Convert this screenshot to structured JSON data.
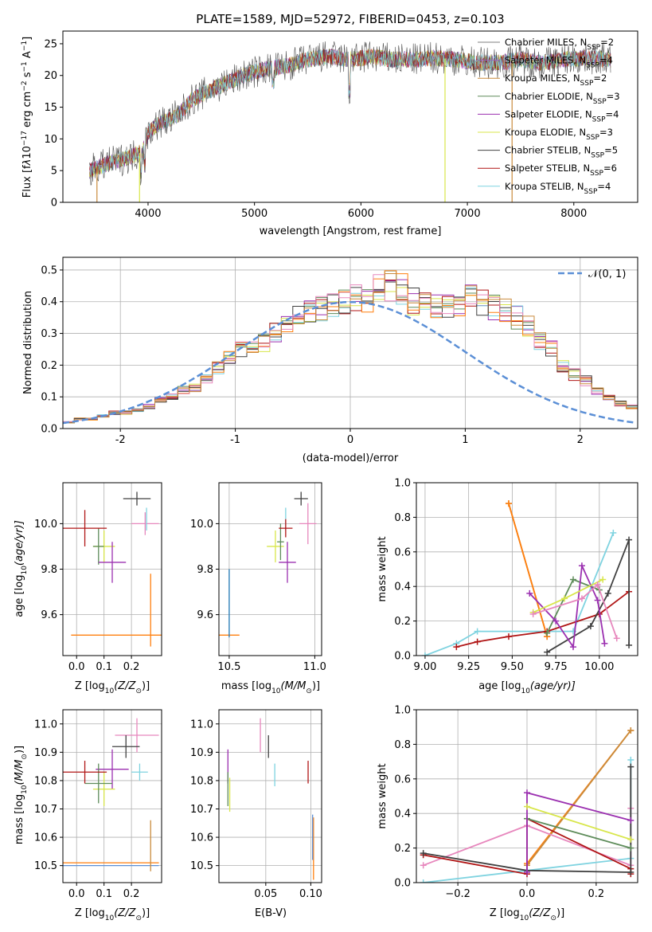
{
  "figure": {
    "title": "PLATE=1589, MJD=52972, FIBERID=0453, z=0.103"
  },
  "chart_data": [
    {
      "id": "spectrum",
      "type": "line",
      "xlabel": "wavelength [Angstrom, rest frame]",
      "ylabel": "Flux [f",
      "ylabel_parts": [
        "Flux [f",
        "λ",
        "10",
        "−17",
        " erg cm",
        "−2",
        " s",
        "−1",
        " A",
        "−1",
        "]"
      ],
      "xlim": [
        3200,
        8600
      ],
      "ylim": [
        0,
        27
      ],
      "xticks": [
        4000,
        5000,
        6000,
        7000,
        8000
      ],
      "yticks": [
        0,
        5,
        10,
        15,
        20,
        25
      ],
      "legend_position": "top-right",
      "grid": false,
      "series": [
        {
          "name": "Chabrier MILES, N",
          "sub": "SSP",
          "eq": "=2",
          "color": "#7f7f7f"
        },
        {
          "name": "Salpeter MILES, N",
          "sub": "SSP",
          "eq": "=4",
          "color": "#9467bd"
        },
        {
          "name": "Kroupa MILES, N",
          "sub": "SSP",
          "eq": "=2",
          "color": "#c98b3c"
        },
        {
          "name": "Chabrier ELODIE, N",
          "sub": "SSP",
          "eq": "=3",
          "color": "#5e8c5a"
        },
        {
          "name": "Salpeter ELODIE, N",
          "sub": "SSP",
          "eq": "=4",
          "color": "#9b30b0"
        },
        {
          "name": "Kroupa ELODIE, N",
          "sub": "SSP",
          "eq": "=3",
          "color": "#d8e64a"
        },
        {
          "name": "Chabrier STELIB, N",
          "sub": "SSP",
          "eq": "=5",
          "color": "#404040"
        },
        {
          "name": "Salpeter STELIB, N",
          "sub": "SSP",
          "eq": "=6",
          "color": "#b01515"
        },
        {
          "name": "Kroupa STELIB, N",
          "sub": "SSP",
          "eq": "=4",
          "color": "#7fd3e0"
        }
      ],
      "continuum": [
        [
          3450,
          5
        ],
        [
          3600,
          6
        ],
        [
          3800,
          7
        ],
        [
          3950,
          8
        ],
        [
          4000,
          11
        ],
        [
          4100,
          12.5
        ],
        [
          4200,
          13
        ],
        [
          4300,
          14
        ],
        [
          4400,
          16
        ],
        [
          4500,
          17
        ],
        [
          4700,
          18.5
        ],
        [
          4900,
          20
        ],
        [
          5100,
          21
        ],
        [
          5300,
          21.5
        ],
        [
          5500,
          22.5
        ],
        [
          5700,
          23
        ],
        [
          5900,
          22.5
        ],
        [
          6100,
          23
        ],
        [
          6300,
          22.5
        ],
        [
          6500,
          22.5
        ],
        [
          6700,
          22.8
        ],
        [
          6900,
          22.5
        ],
        [
          7100,
          22
        ],
        [
          7300,
          22
        ],
        [
          7500,
          22.5
        ],
        [
          7700,
          22
        ],
        [
          7900,
          22.5
        ],
        [
          8100,
          22.8
        ],
        [
          8350,
          22.5
        ]
      ],
      "spikes": [
        [
          6790,
          0,
          "#d8e64a"
        ],
        [
          7420,
          0,
          "#c98b3c"
        ],
        [
          3920,
          0,
          "#d8e64a"
        ],
        [
          3520,
          0,
          "#c98b3c"
        ]
      ]
    },
    {
      "id": "residuals",
      "type": "histogram",
      "xlabel": "(data-model)/error",
      "ylabel": "Normed distribution",
      "xlim": [
        -2.5,
        2.5
      ],
      "ylim": [
        0,
        0.54
      ],
      "xticks": [
        -2,
        -1,
        0,
        1,
        2
      ],
      "yticks": [
        0,
        0.1,
        0.2,
        0.3,
        0.4,
        0.5
      ],
      "grid": true,
      "legend_position": "top-right",
      "legend_label": "𝒩(0, 1)",
      "bin_width": 0.1,
      "bin_start": -2.5,
      "base_values": [
        0.02,
        0.03,
        0.03,
        0.04,
        0.05,
        0.05,
        0.06,
        0.07,
        0.09,
        0.1,
        0.12,
        0.13,
        0.16,
        0.19,
        0.23,
        0.25,
        0.26,
        0.27,
        0.3,
        0.33,
        0.35,
        0.37,
        0.38,
        0.39,
        0.4,
        0.41,
        0.41,
        0.44,
        0.45,
        0.44,
        0.4,
        0.39,
        0.39,
        0.38,
        0.39,
        0.41,
        0.4,
        0.38,
        0.37,
        0.35,
        0.32,
        0.28,
        0.25,
        0.2,
        0.17,
        0.15,
        0.12,
        0.1,
        0.08,
        0.07,
        0.06,
        0.05,
        0.04,
        0.04,
        0.03,
        0.03,
        0.02,
        0.02,
        0.02,
        0.02
      ]
    },
    {
      "id": "age-vs-Z",
      "type": "scatter",
      "xlabel": "Z [log",
      "xlabel_parts": [
        "Z [log",
        "10",
        "(Z/Z",
        "⊙",
        ")]"
      ],
      "ylabel_parts": [
        "age  [log",
        "10",
        "(age/yr)]"
      ],
      "xlim": [
        -0.05,
        0.31
      ],
      "ylim": [
        9.42,
        10.18
      ],
      "xticks": [
        0,
        0.1,
        0.2
      ],
      "yticks": [
        9.6,
        9.8,
        10.0
      ],
      "grid": true,
      "points": [
        {
          "x": 0.22,
          "y": 10.11,
          "xerr": 0.05,
          "yerr": 0.03,
          "color": "#404040"
        },
        {
          "x": 0.25,
          "y": 10.0,
          "xerr": 0.05,
          "yerr": 0.05,
          "color": "#e787bd"
        },
        {
          "x": 0.255,
          "y": 10.02,
          "xerr": 0.0,
          "yerr": 0.05,
          "color": "#7fd3e0"
        },
        {
          "x": 0.1,
          "y": 9.9,
          "xerr": 0.04,
          "yerr": 0.07,
          "color": "#d8e64a"
        },
        {
          "x": 0.08,
          "y": 9.9,
          "xerr": 0.02,
          "yerr": 0.08,
          "color": "#5e8c5a"
        },
        {
          "x": 0.13,
          "y": 9.83,
          "xerr": 0.05,
          "yerr": 0.09,
          "color": "#9b30b0"
        },
        {
          "x": 0.03,
          "y": 9.98,
          "xerr": 0.08,
          "yerr": 0.08,
          "color": "#b01515"
        },
        {
          "x": 0.27,
          "y": 9.51,
          "xerr": 0.29,
          "yerr": 0.0,
          "color": "#ff7f0e"
        },
        {
          "x": 0.27,
          "y": 9.62,
          "xerr": 0.0,
          "yerr": 0.16,
          "color": "#ff7f0e"
        }
      ]
    },
    {
      "id": "age-vs-mass",
      "type": "scatter",
      "xlabel_parts": [
        "mass [log",
        "10",
        "(M/M",
        "⊙",
        ")]"
      ],
      "xlim": [
        10.44,
        11.04
      ],
      "ylim": [
        9.42,
        10.18
      ],
      "xticks": [
        10.5,
        11.0
      ],
      "yticks": [
        9.6,
        9.8,
        10.0
      ],
      "grid": true,
      "points": [
        {
          "x": 10.92,
          "y": 10.11,
          "xerr": 0.04,
          "yerr": 0.03,
          "color": "#404040"
        },
        {
          "x": 10.96,
          "y": 10.0,
          "xerr": 0.05,
          "yerr": 0.09,
          "color": "#e787bd"
        },
        {
          "x": 10.83,
          "y": 10.02,
          "xerr": 0.0,
          "yerr": 0.05,
          "color": "#7fd3e0"
        },
        {
          "x": 10.77,
          "y": 9.9,
          "xerr": 0.05,
          "yerr": 0.07,
          "color": "#d8e64a"
        },
        {
          "x": 10.8,
          "y": 9.92,
          "xerr": 0.02,
          "yerr": 0.08,
          "color": "#5e8c5a"
        },
        {
          "x": 10.84,
          "y": 9.83,
          "xerr": 0.05,
          "yerr": 0.09,
          "color": "#9b30b0"
        },
        {
          "x": 10.83,
          "y": 9.98,
          "xerr": 0.04,
          "yerr": 0.04,
          "color": "#b01515"
        },
        {
          "x": 10.5,
          "y": 9.51,
          "xerr": 0.06,
          "yerr": 0.0,
          "color": "#ff7f0e"
        },
        {
          "x": 10.5,
          "y": 9.65,
          "xerr": 0.0,
          "yerr": 0.15,
          "color": "#1f77b4"
        }
      ]
    },
    {
      "id": "weight-vs-age",
      "type": "line",
      "xlabel_parts": [
        "age  [log",
        "10",
        "(age/yr)]"
      ],
      "ylabel": "mass weight",
      "xlim": [
        8.95,
        10.22
      ],
      "ylim": [
        0,
        1
      ],
      "xticks": [
        9.0,
        9.25,
        9.5,
        9.75,
        10.0
      ],
      "xticklabels": [
        "9.00",
        "9.25",
        "9.50",
        "9.75",
        "10.00"
      ],
      "yticks": [
        0,
        0.2,
        0.4,
        0.6,
        0.8,
        1.0
      ],
      "grid": true,
      "series": [
        {
          "color": "#c98b3c",
          "points": [
            [
              9.48,
              0.88
            ],
            [
              9.7,
              0.11
            ]
          ]
        },
        {
          "color": "#ff7f0e",
          "points": [
            [
              9.48,
              0.88
            ],
            [
              9.7,
              0.11
            ]
          ]
        },
        {
          "color": "#7fd3e0",
          "points": [
            [
              9.0,
              0.0
            ],
            [
              9.18,
              0.07
            ],
            [
              9.3,
              0.14
            ],
            [
              9.85,
              0.14
            ],
            [
              10.08,
              0.71
            ]
          ]
        },
        {
          "color": "#b01515",
          "points": [
            [
              9.18,
              0.05
            ],
            [
              9.3,
              0.08
            ],
            [
              9.48,
              0.11
            ],
            [
              9.7,
              0.14
            ],
            [
              10.0,
              0.24
            ],
            [
              10.17,
              0.37
            ]
          ]
        },
        {
          "color": "#404040",
          "points": [
            [
              9.7,
              0.02
            ],
            [
              9.95,
              0.17
            ],
            [
              10.05,
              0.36
            ],
            [
              10.17,
              0.67
            ],
            [
              10.17,
              0.06
            ]
          ]
        },
        {
          "color": "#5e8c5a",
          "points": [
            [
              9.7,
              0.13
            ],
            [
              9.85,
              0.44
            ],
            [
              10.0,
              0.38
            ]
          ]
        },
        {
          "color": "#9b30b0",
          "points": [
            [
              9.6,
              0.36
            ],
            [
              9.75,
              0.2
            ],
            [
              9.85,
              0.05
            ],
            [
              9.9,
              0.52
            ],
            [
              9.99,
              0.32
            ],
            [
              10.03,
              0.07
            ]
          ]
        },
        {
          "color": "#d8e64a",
          "points": [
            [
              9.62,
              0.25
            ],
            [
              9.8,
              0.33
            ],
            [
              10.02,
              0.44
            ]
          ]
        },
        {
          "color": "#e787bd",
          "points": [
            [
              9.62,
              0.24
            ],
            [
              9.9,
              0.33
            ],
            [
              9.99,
              0.41
            ],
            [
              10.1,
              0.1
            ]
          ]
        }
      ]
    },
    {
      "id": "mass-vs-Z",
      "type": "scatter",
      "xlabel_parts": [
        "Z [log",
        "10",
        "(Z/Z",
        "⊙",
        ")]"
      ],
      "ylabel_parts": [
        "mass [log",
        "10",
        "(M/M",
        "⊙",
        ")]"
      ],
      "xlim": [
        -0.05,
        0.31
      ],
      "ylim": [
        10.44,
        11.05
      ],
      "xticks": [
        0,
        0.1,
        0.2
      ],
      "yticks": [
        10.5,
        10.6,
        10.7,
        10.8,
        10.9,
        11.0
      ],
      "grid": true,
      "points": [
        {
          "x": 0.22,
          "y": 10.96,
          "xerr": 0.08,
          "yerr": 0.06,
          "color": "#e787bd"
        },
        {
          "x": 0.18,
          "y": 10.92,
          "xerr": 0.05,
          "yerr": 0.04,
          "color": "#404040"
        },
        {
          "x": 0.23,
          "y": 10.83,
          "xerr": 0.03,
          "yerr": 0.03,
          "color": "#7fd3e0"
        },
        {
          "x": 0.13,
          "y": 10.84,
          "xerr": 0.06,
          "yerr": 0.07,
          "color": "#9b30b0"
        },
        {
          "x": 0.1,
          "y": 10.77,
          "xerr": 0.04,
          "yerr": 0.06,
          "color": "#d8e64a"
        },
        {
          "x": 0.08,
          "y": 10.79,
          "xerr": 0.05,
          "yerr": 0.07,
          "color": "#5e8c5a"
        },
        {
          "x": 0.03,
          "y": 10.83,
          "xerr": 0.08,
          "yerr": 0.04,
          "color": "#b01515"
        },
        {
          "x": 0.1,
          "y": 10.51,
          "xerr": 0.2,
          "yerr": 0.0,
          "color": "#ff7f0e"
        },
        {
          "x": 0.1,
          "y": 10.5,
          "xerr": 0.2,
          "yerr": 0.0,
          "color": "#5b8fd6"
        },
        {
          "x": 0.27,
          "y": 10.57,
          "xerr": 0.0,
          "yerr": 0.09,
          "color": "#c98b3c"
        }
      ]
    },
    {
      "id": "mass-vs-EBV",
      "type": "scatter",
      "xlabel": "E(B-V)",
      "xlim": [
        -0.002,
        0.112
      ],
      "ylim": [
        10.44,
        11.05
      ],
      "xticks": [
        0.05,
        0.1
      ],
      "xticklabels": [
        "0.05",
        "0.10"
      ],
      "yticks": [
        10.5,
        10.6,
        10.7,
        10.8,
        10.9,
        11.0
      ],
      "grid": true,
      "points": [
        {
          "x": 0.044,
          "y": 10.96,
          "yerr": 0.06,
          "color": "#e787bd"
        },
        {
          "x": 0.053,
          "y": 10.92,
          "yerr": 0.04,
          "color": "#404040"
        },
        {
          "x": 0.06,
          "y": 10.82,
          "yerr": 0.04,
          "color": "#7fd3e0"
        },
        {
          "x": 0.008,
          "y": 10.85,
          "yerr": 0.06,
          "color": "#9b30b0"
        },
        {
          "x": 0.01,
          "y": 10.75,
          "yerr": 0.06,
          "color": "#d8e64a"
        },
        {
          "x": 0.008,
          "y": 10.77,
          "yerr": 0.06,
          "color": "#5e8c5a"
        },
        {
          "x": 0.097,
          "y": 10.83,
          "yerr": 0.04,
          "color": "#b01515"
        },
        {
          "x": 0.103,
          "y": 10.56,
          "yerr": 0.11,
          "color": "#ff7f0e"
        },
        {
          "x": 0.102,
          "y": 10.6,
          "yerr": 0.08,
          "color": "#5b8fd6"
        }
      ]
    },
    {
      "id": "weight-vs-Z",
      "type": "line",
      "xlabel_parts": [
        "Z [log",
        "10",
        "(Z/Z",
        "⊙",
        ")]"
      ],
      "ylabel": "mass weight",
      "xlim": [
        -0.32,
        0.32
      ],
      "ylim": [
        0,
        1
      ],
      "xticks": [
        -0.2,
        0,
        0.2
      ],
      "xticklabels": [
        "−0.2",
        "0.0",
        "0.2"
      ],
      "yticks": [
        0,
        0.2,
        0.4,
        0.6,
        0.8,
        1.0
      ],
      "grid": true,
      "series": [
        {
          "color": "#ff7f0e",
          "points": [
            [
              0.0,
              0.11
            ],
            [
              0.3,
              0.88
            ]
          ]
        },
        {
          "color": "#c98b3c",
          "points": [
            [
              0.0,
              0.1
            ],
            [
              0.3,
              0.88
            ]
          ]
        },
        {
          "color": "#7fd3e0",
          "points": [
            [
              -0.3,
              0.0
            ],
            [
              0.0,
              0.07
            ],
            [
              0.3,
              0.14
            ],
            [
              0.3,
              0.71
            ]
          ]
        },
        {
          "color": "#e787bd",
          "points": [
            [
              -0.3,
              0.1
            ],
            [
              0.0,
              0.33
            ],
            [
              0.3,
              0.1
            ],
            [
              0.3,
              0.43
            ]
          ]
        },
        {
          "color": "#b01515",
          "points": [
            [
              -0.3,
              0.16
            ],
            [
              0.0,
              0.05
            ],
            [
              0.0,
              0.37
            ],
            [
              0.3,
              0.08
            ],
            [
              0.3,
              0.05
            ]
          ]
        },
        {
          "color": "#404040",
          "points": [
            [
              -0.3,
              0.17
            ],
            [
              0.0,
              0.07
            ],
            [
              0.3,
              0.06
            ],
            [
              0.3,
              0.67
            ]
          ]
        },
        {
          "color": "#5e8c5a",
          "points": [
            [
              0.0,
              0.37
            ],
            [
              0.3,
              0.2
            ]
          ]
        },
        {
          "color": "#9b30b0",
          "points": [
            [
              0.0,
              0.06
            ],
            [
              0.0,
              0.52
            ],
            [
              0.3,
              0.36
            ]
          ]
        },
        {
          "color": "#d8e64a",
          "points": [
            [
              0.0,
              0.44
            ],
            [
              0.3,
              0.25
            ]
          ]
        }
      ]
    }
  ]
}
